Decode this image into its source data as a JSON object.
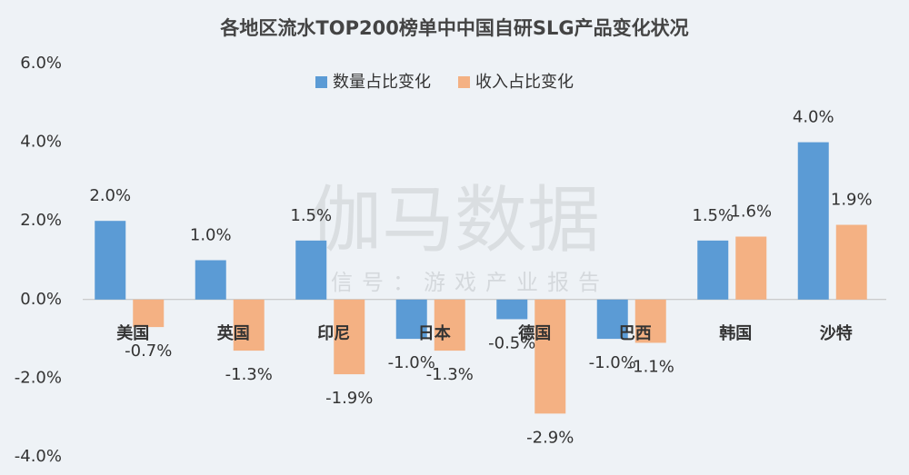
{
  "chart_data": {
    "type": "bar",
    "title": "各地区流水TOP200榜单中中国自研SLG产品变化状况",
    "watermark": "伽马数据",
    "watermark_subtitle": "微信号：游戏产业报告",
    "categories": [
      "美国",
      "英国",
      "印尼",
      "日本",
      "德国",
      "巴西",
      "韩国",
      "沙特"
    ],
    "series": [
      {
        "name": "数量占比变化",
        "color": "#5b9bd5",
        "values": [
          2.0,
          1.0,
          1.5,
          -1.0,
          -0.5,
          -1.0,
          1.5,
          4.0
        ],
        "value_labels": [
          "2.0%",
          "1.0%",
          "1.5%",
          "-1.0%",
          "-0.5%",
          "-1.0%",
          "1.5%",
          "4.0%"
        ]
      },
      {
        "name": "收入占比变化",
        "color": "#f4b183",
        "values": [
          -0.7,
          -1.3,
          -1.9,
          -1.3,
          -2.9,
          -1.1,
          1.6,
          1.9
        ],
        "value_labels": [
          "-0.7%",
          "-1.3%",
          "-1.9%",
          "-1.3%",
          "-2.9%",
          "-1.1%",
          "1.6%",
          "1.9%"
        ]
      }
    ],
    "ylim": [
      -4,
      6
    ],
    "yticks": [
      {
        "value": -4,
        "label": "-4.0%"
      },
      {
        "value": -2,
        "label": "-2.0%"
      },
      {
        "value": 0,
        "label": "0.0%"
      },
      {
        "value": 2,
        "label": "2.0%"
      },
      {
        "value": 4,
        "label": "4.0%"
      },
      {
        "value": 6,
        "label": "6.0%"
      }
    ],
    "grid": false
  }
}
